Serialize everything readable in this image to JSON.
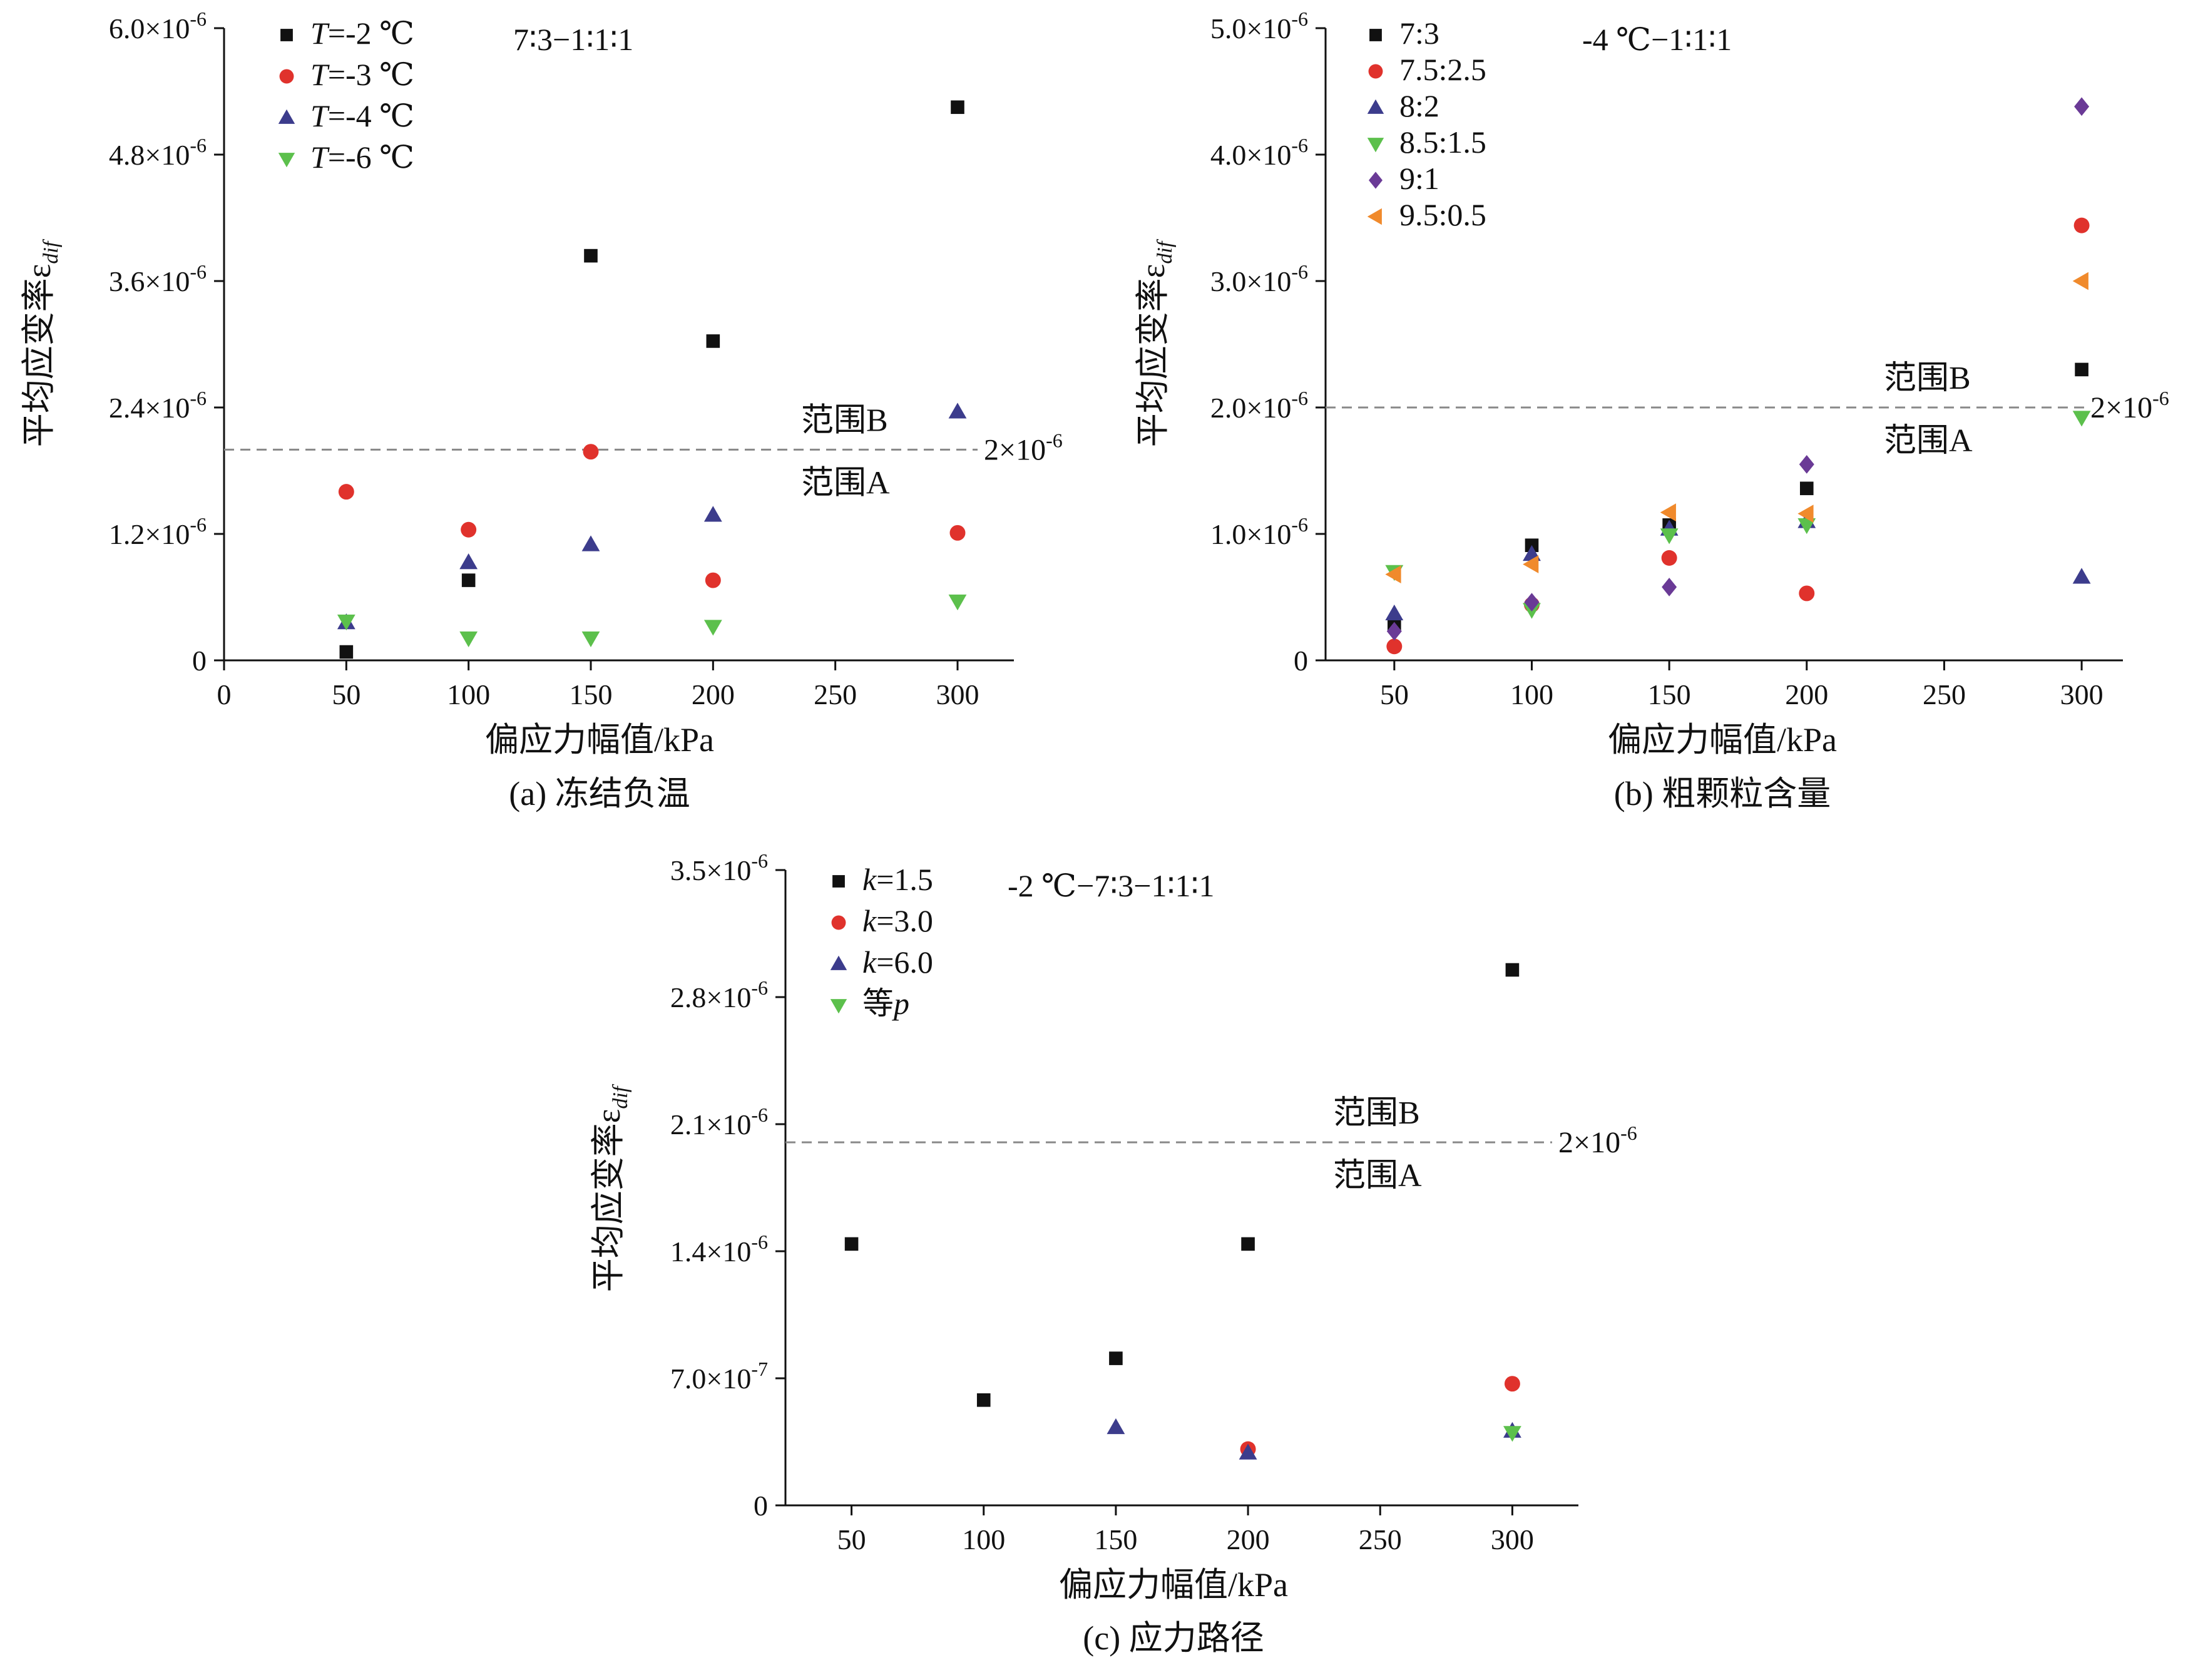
{
  "chart_data": [
    {
      "type": "scatter",
      "caption": "(a) 冻结负温",
      "subtitle": "7∶3−1∶1∶1",
      "xlabel": "偏应力幅值/kPa",
      "ylabel": "平均应变率ε",
      "ylabel_sub": "dif",
      "xlim": [
        0,
        320
      ],
      "xticks": [
        0,
        50,
        100,
        150,
        200,
        250,
        300
      ],
      "xtick_labels": [
        "0",
        "50",
        "100",
        "150",
        "200",
        "250",
        "300"
      ],
      "ylim": [
        0,
        6e-06
      ],
      "yticks": [
        0,
        1.2e-06,
        2.4e-06,
        3.6e-06,
        4.8e-06,
        6e-06
      ],
      "ytick_labels": [
        "0",
        "1.2×10",
        "2.4×10",
        "3.6×10",
        "4.8×10",
        "6.0×10"
      ],
      "ytick_exps": [
        "",
        "-6",
        "-6",
        "-6",
        "-6",
        "-6"
      ],
      "threshold": {
        "value": 2e-06,
        "label": "2×10",
        "label_exp": "-6",
        "above_label": "范围B",
        "below_label": "范围A"
      },
      "series": [
        {
          "name_italic": "T",
          "name_rest": "=-2 ℃",
          "marker": "square",
          "color": "#111111",
          "x": [
            50,
            100,
            150,
            200,
            300
          ],
          "y": [
            8e-08,
            7.6e-07,
            3.84e-06,
            3.03e-06,
            5.25e-06
          ]
        },
        {
          "name_italic": "T",
          "name_rest": "=-3 ℃",
          "marker": "circle",
          "color": "#e0322c",
          "x": [
            50,
            100,
            150,
            200,
            300
          ],
          "y": [
            1.6e-06,
            1.24e-06,
            1.98e-06,
            7.6e-07,
            1.21e-06
          ]
        },
        {
          "name_italic": "T",
          "name_rest": "=-4 ℃",
          "marker": "triangle-up",
          "color": "#3c3c8c",
          "x": [
            50,
            100,
            150,
            200,
            300
          ],
          "y": [
            3.6e-07,
            9.3e-07,
            1.1e-06,
            1.38e-06,
            2.36e-06
          ]
        },
        {
          "name_italic": "T",
          "name_rest": "=-6 ℃",
          "marker": "triangle-down",
          "color": "#5cc04c",
          "x": [
            50,
            100,
            150,
            200,
            300
          ],
          "y": [
            3.7e-07,
            2.1e-07,
            2.1e-07,
            3.2e-07,
            5.6e-07
          ]
        }
      ]
    },
    {
      "type": "scatter",
      "caption": "(b) 粗颗粒含量",
      "subtitle": "-4 ℃−1∶1∶1",
      "xlabel": "偏应力幅值/kPa",
      "ylabel": "平均应变率ε",
      "ylabel_sub": "dif",
      "xlim": [
        25,
        315
      ],
      "xticks": [
        50,
        100,
        150,
        200,
        250,
        300
      ],
      "xtick_labels": [
        "50",
        "100",
        "150",
        "200",
        "250",
        "300"
      ],
      "ylim": [
        0,
        5e-06
      ],
      "yticks": [
        0,
        1e-06,
        2e-06,
        3e-06,
        4e-06,
        5e-06
      ],
      "ytick_labels": [
        "0",
        "1.0×10",
        "2.0×10",
        "3.0×10",
        "4.0×10",
        "5.0×10"
      ],
      "ytick_exps": [
        "",
        "-6",
        "-6",
        "-6",
        "-6",
        "-6"
      ],
      "threshold": {
        "value": 2e-06,
        "label": "2×10",
        "label_exp": "-6",
        "above_label": "范围B",
        "below_label": "范围A"
      },
      "series": [
        {
          "name_italic": "",
          "name_rest": "7:3",
          "marker": "square",
          "color": "#111111",
          "x": [
            50,
            100,
            150,
            200,
            300
          ],
          "y": [
            2.8e-07,
            9.1e-07,
            1.07e-06,
            1.36e-06,
            2.3e-06
          ]
        },
        {
          "name_italic": "",
          "name_rest": "7.5:2.5",
          "marker": "circle",
          "color": "#e0322c",
          "x": [
            50,
            100,
            150,
            200,
            300
          ],
          "y": [
            1.1e-07,
            4.4e-07,
            8.1e-07,
            5.3e-07,
            3.44e-06
          ]
        },
        {
          "name_italic": "",
          "name_rest": "8:2",
          "marker": "triangle-up",
          "color": "#3c3c8c",
          "x": [
            50,
            100,
            150,
            200,
            300
          ],
          "y": [
            3.7e-07,
            8.4e-07,
            1.04e-06,
            1.1e-06,
            6.6e-07
          ]
        },
        {
          "name_italic": "",
          "name_rest": "8.5:1.5",
          "marker": "triangle-down",
          "color": "#5cc04c",
          "x": [
            50,
            100,
            150,
            200,
            300
          ],
          "y": [
            7e-07,
            4e-07,
            9.9e-07,
            1.07e-06,
            1.92e-06
          ]
        },
        {
          "name_italic": "",
          "name_rest": "9:1",
          "marker": "diamond",
          "color": "#6a3a96",
          "x": [
            50,
            100,
            150,
            200,
            300
          ],
          "y": [
            2.3e-07,
            4.6e-07,
            5.8e-07,
            1.55e-06,
            4.38e-06
          ]
        },
        {
          "name_italic": "",
          "name_rest": "9.5:0.5",
          "marker": "triangle-left",
          "color": "#f08a2c",
          "x": [
            50,
            100,
            150,
            200,
            300
          ],
          "y": [
            6.8e-07,
            7.6e-07,
            1.17e-06,
            1.16e-06,
            3e-06
          ]
        }
      ]
    },
    {
      "type": "scatter",
      "caption": "(c) 应力路径",
      "subtitle": "-2 ℃−7∶3−1∶1∶1",
      "xlabel": "偏应力幅值/kPa",
      "ylabel": "平均应变率ε",
      "ylabel_sub": "dif",
      "xlim": [
        25,
        325
      ],
      "xticks": [
        50,
        100,
        150,
        200,
        250,
        300
      ],
      "xtick_labels": [
        "50",
        "100",
        "150",
        "200",
        "250",
        "300"
      ],
      "ylim": [
        0,
        3.5e-06
      ],
      "yticks": [
        0,
        7e-07,
        1.4e-06,
        2.1e-06,
        2.8e-06,
        3.5e-06
      ],
      "ytick_labels": [
        "0",
        "7.0×10",
        "1.4×10",
        "2.1×10",
        "2.8×10",
        "3.5×10"
      ],
      "ytick_exps": [
        "",
        "-7",
        "-6",
        "-6",
        "-6",
        "-6"
      ],
      "threshold": {
        "value": 2e-06,
        "label": "2×10",
        "label_exp": "-6",
        "above_label": "范围B",
        "below_label": "范围A"
      },
      "series": [
        {
          "name_italic": "k",
          "name_rest": "=1.5",
          "marker": "square",
          "color": "#111111",
          "x": [
            50,
            100,
            150,
            200,
            300
          ],
          "y": [
            1.44e-06,
            5.8e-07,
            8.1e-07,
            1.44e-06,
            2.95e-06
          ]
        },
        {
          "name_italic": "k",
          "name_rest": "=3.0",
          "marker": "circle",
          "color": "#e0322c",
          "x": [
            200,
            300
          ],
          "y": [
            3.1e-07,
            6.7e-07
          ]
        },
        {
          "name_italic": "k",
          "name_rest": "=6.0",
          "marker": "triangle-up",
          "color": "#3c3c8c",
          "x": [
            150,
            200,
            300
          ],
          "y": [
            4.3e-07,
            2.9e-07,
            4.1e-07
          ]
        },
        {
          "name_italic": "",
          "name_rest": "等",
          "name_suffix_italic": "p",
          "marker": "triangle-down",
          "color": "#5cc04c",
          "x": [
            300
          ],
          "y": [
            4e-07
          ]
        }
      ]
    }
  ]
}
